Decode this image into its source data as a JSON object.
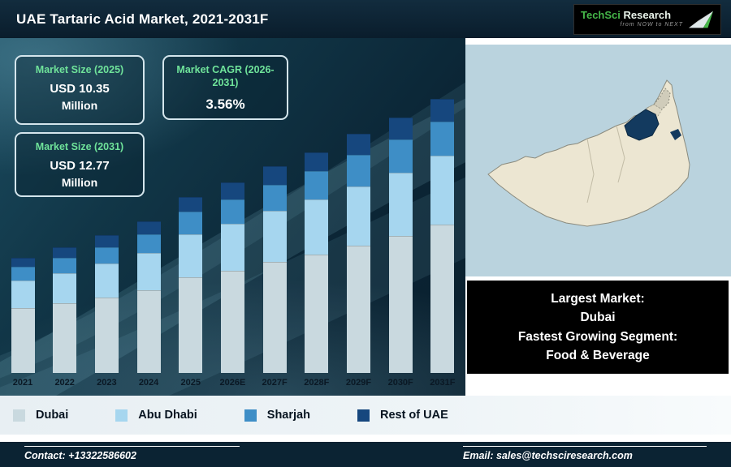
{
  "header": {
    "title": "UAE Tartaric Acid Market, 2021-2031F",
    "logo": {
      "brand_part1": "TechSci",
      "brand_part2": "Research",
      "tagline": "from NOW to NEXT"
    }
  },
  "stats": {
    "size_2025": {
      "label": "Market Size (2025)",
      "value": "USD 10.35",
      "unit": "Million"
    },
    "cagr": {
      "label": "Market CAGR (2026-2031)",
      "value": "3.56%"
    },
    "size_2031": {
      "label": "Market Size (2031)",
      "value": "USD 12.77",
      "unit": "Million"
    }
  },
  "chart_data": {
    "type": "bar",
    "stacked": true,
    "title": "UAE Tartaric Acid Market, 2021-2031F",
    "unit": "USD Million",
    "categories": [
      "2021",
      "2022",
      "2023",
      "2024",
      "2025",
      "2026E",
      "2027F",
      "2028F",
      "2029F",
      "2030F",
      "2031F"
    ],
    "series": [
      {
        "name": "Dubai",
        "color": "#c9d9df",
        "values": [
          4.95,
          5.05,
          5.15,
          5.3,
          5.6,
          5.75,
          5.95,
          6.15,
          6.35,
          6.6,
          6.9
        ]
      },
      {
        "name": "Abu Dhabi",
        "color": "#a6d6ef",
        "values": [
          2.15,
          2.2,
          2.3,
          2.4,
          2.55,
          2.65,
          2.75,
          2.85,
          2.95,
          3.05,
          3.2
        ]
      },
      {
        "name": "Sharjah",
        "color": "#3e8ec6",
        "values": [
          1.05,
          1.1,
          1.15,
          1.2,
          1.3,
          1.35,
          1.4,
          1.45,
          1.55,
          1.6,
          1.6
        ]
      },
      {
        "name": "Rest of UAE",
        "color": "#16477e",
        "values": [
          0.7,
          0.75,
          0.8,
          0.85,
          0.9,
          0.95,
          1.0,
          1.0,
          1.05,
          1.05,
          1.07
        ]
      }
    ],
    "totals": [
      8.85,
      9.1,
      9.4,
      9.75,
      10.35,
      10.7,
      11.1,
      11.45,
      11.9,
      12.3,
      12.77
    ],
    "ylim": [
      6,
      14
    ],
    "grid": false,
    "legend_position": "bottom",
    "xlabel": "",
    "ylabel": ""
  },
  "map": {
    "country": "United Arab Emirates",
    "highlighted_region": "Dubai",
    "land_color": "#ece6d2",
    "highlight_color": "#133a5f",
    "water_color": "#bad3de"
  },
  "callout": {
    "line1": "Largest Market:",
    "line2": "Dubai",
    "line3": "Fastest Growing Segment:",
    "line4": "Food & Beverage"
  },
  "footer": {
    "contact": "Contact: +13322586602",
    "email": "Email: sales@techsciresearch.com"
  }
}
